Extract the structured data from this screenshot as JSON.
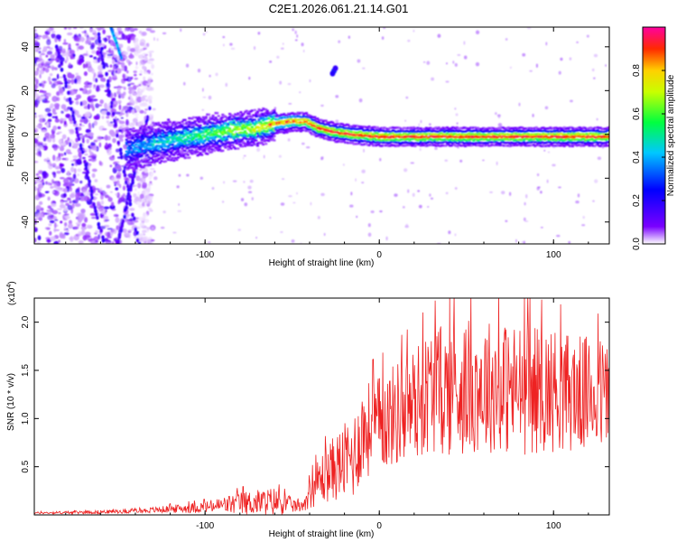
{
  "figure_title": "C2E1.2026.061.21.14.G01",
  "chart_data": [
    {
      "type": "heatmap",
      "title": "C2E1.2026.061.21.14.G01",
      "xlabel": "Height of straight line (km)",
      "ylabel": "Frequency (Hz)",
      "xlim": [
        -198,
        132
      ],
      "ylim": [
        -50,
        49
      ],
      "xticks": [
        -100,
        0,
        100
      ],
      "yticks": [
        -40,
        -20,
        0,
        20,
        40
      ],
      "colorbar": {
        "label": "Normalized spectral amplitude",
        "range": [
          0,
          1
        ],
        "ticks": [
          "0.0",
          "0.2",
          "0.4",
          "0.6",
          "0.8"
        ],
        "colormap": [
          "#ffffff",
          "#7a00ff",
          "#0000ff",
          "#00c8ff",
          "#00ff40",
          "#c8ff00",
          "#ffd000",
          "#ff2a00",
          "#ff00a0"
        ]
      },
      "ridge": {
        "name": "dominant frequency ridge",
        "x": [
          -145,
          -130,
          -115,
          -100,
          -85,
          -70,
          -60,
          -50,
          -42,
          -35,
          -25,
          -15,
          0,
          20,
          40,
          60,
          80,
          100,
          115,
          130
        ],
        "y": [
          -7,
          -4,
          -2,
          0,
          2,
          3,
          5,
          6,
          6,
          3,
          1,
          0,
          -1,
          -1,
          -1,
          -1,
          -1,
          -1,
          -1,
          -1
        ]
      },
      "features": [
        {
          "name": "narrow descending streak",
          "x": [
            -154,
            -148
          ],
          "y": [
            49,
            35
          ]
        },
        {
          "name": "isolated blob",
          "x": -26,
          "y": 29
        },
        {
          "name": "noise region",
          "x": [
            -198,
            -140
          ],
          "y": [
            -50,
            49
          ]
        }
      ]
    },
    {
      "type": "line",
      "title": "",
      "xlabel": "Height of straight line (km)",
      "ylabel": "SNR (10 * v/v)",
      "yscale_label": "(x10",
      "yscale_exp": "4",
      "yscale_close": ")",
      "xlim": [
        -198,
        132
      ],
      "ylim": [
        0,
        2.25
      ],
      "xticks": [
        -100,
        0,
        100
      ],
      "yticks": [
        "0.5",
        "1.0",
        "1.5",
        "2.0"
      ],
      "ytick_values": [
        0.5,
        1.0,
        1.5,
        2.0
      ],
      "series": [
        {
          "name": "SNR",
          "color": "#ee2222",
          "envelope_x": [
            -198,
            -160,
            -140,
            -120,
            -100,
            -80,
            -60,
            -50,
            -45,
            -35,
            -25,
            -15,
            -10,
            0,
            10,
            20,
            30,
            40,
            60,
            80,
            100,
            120,
            132
          ],
          "envelope_mean": [
            0.02,
            0.03,
            0.04,
            0.06,
            0.08,
            0.12,
            0.14,
            0.1,
            0.08,
            0.35,
            0.5,
            0.6,
            0.85,
            0.95,
            1.05,
            1.15,
            1.3,
            1.3,
            1.35,
            1.3,
            1.3,
            1.25,
            1.25
          ],
          "envelope_amp": [
            0.01,
            0.02,
            0.02,
            0.04,
            0.06,
            0.12,
            0.15,
            0.08,
            0.05,
            0.25,
            0.35,
            0.45,
            0.5,
            0.5,
            0.55,
            0.6,
            0.65,
            0.7,
            0.7,
            0.7,
            0.65,
            0.6,
            0.6
          ]
        }
      ]
    }
  ]
}
